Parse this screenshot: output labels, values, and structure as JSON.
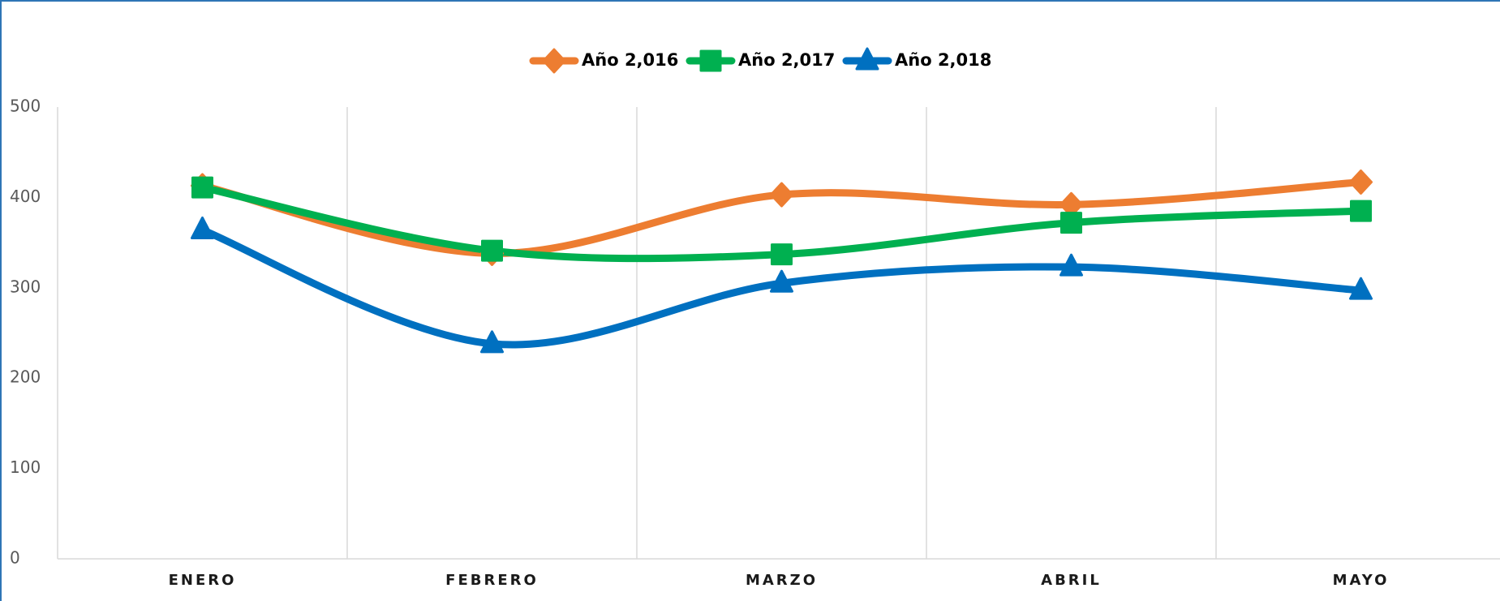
{
  "chart_data": {
    "type": "line",
    "categories": [
      "ENERO",
      "FEBRERO",
      "MARZO",
      "ABRIL",
      "MAYO"
    ],
    "series": [
      {
        "name": "Año 2,016",
        "color": "#ed7d31",
        "marker": "diamond",
        "values": [
          413,
          338,
          403,
          392,
          417
        ]
      },
      {
        "name": "Año 2,017",
        "color": "#00b050",
        "marker": "square",
        "values": [
          411,
          341,
          337,
          372,
          385
        ]
      },
      {
        "name": "Año 2,018",
        "color": "#0070c0",
        "marker": "triangle",
        "values": [
          364,
          238,
          305,
          323,
          297
        ]
      }
    ],
    "ylim": [
      0,
      500
    ],
    "yticks": [
      0,
      100,
      200,
      300,
      400,
      500
    ],
    "smooth": true,
    "legend": "top"
  }
}
